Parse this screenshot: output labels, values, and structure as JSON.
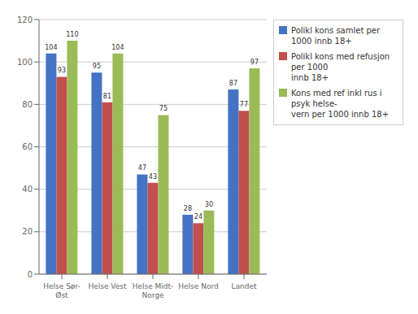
{
  "chart_data": {
    "type": "bar",
    "categories": [
      "Helse Sør-\nØst",
      "Helse Vest",
      "Helse Midt-\nNorge",
      "Helse Nord",
      "Landet"
    ],
    "series": [
      {
        "name": "Polikl kons samlet per 1000 innb 18+",
        "values": [
          104,
          95,
          47,
          28,
          87
        ],
        "color": "#4472C4"
      },
      {
        "name": "Polikl kons med refusjon  per 1000\ninnb 18+",
        "values": [
          93,
          81,
          43,
          24,
          77
        ],
        "color": "#C0504D"
      },
      {
        "name": "Kons med ref inkl rus i psyk helse-\nvern per 1000 innb 18+",
        "values": [
          110,
          104,
          75,
          30,
          97
        ],
        "color": "#9BBB59"
      }
    ],
    "ylim": [
      0,
      120
    ],
    "yticks": [
      0,
      20,
      40,
      60,
      80,
      100,
      120
    ],
    "grid": true,
    "legend": "upper right",
    "data_labels": true
  }
}
